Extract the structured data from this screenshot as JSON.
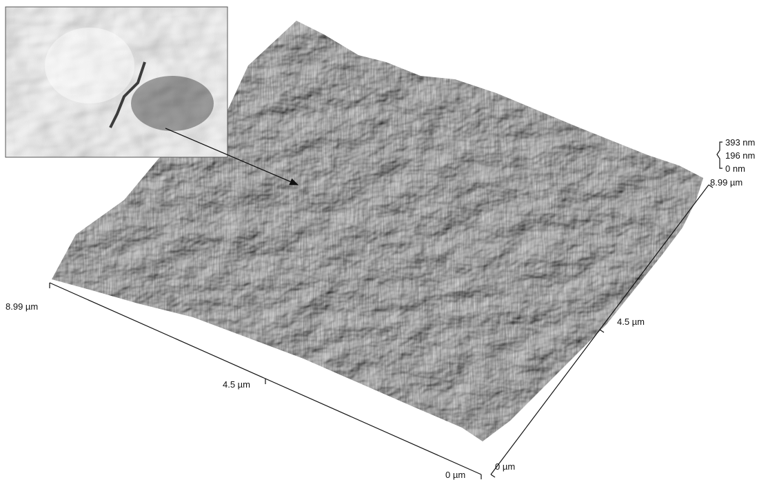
{
  "figure": {
    "z_scale": {
      "top": "393 nm",
      "mid": "196 nm",
      "bottom": "0 nm"
    },
    "axis_right": {
      "end": "8.99 µm",
      "mid": "4.5 µm",
      "origin": "0 µm"
    },
    "axis_front": {
      "end": "8.99 µm",
      "mid": "4.5 µm",
      "origin": "0 µm"
    }
  }
}
